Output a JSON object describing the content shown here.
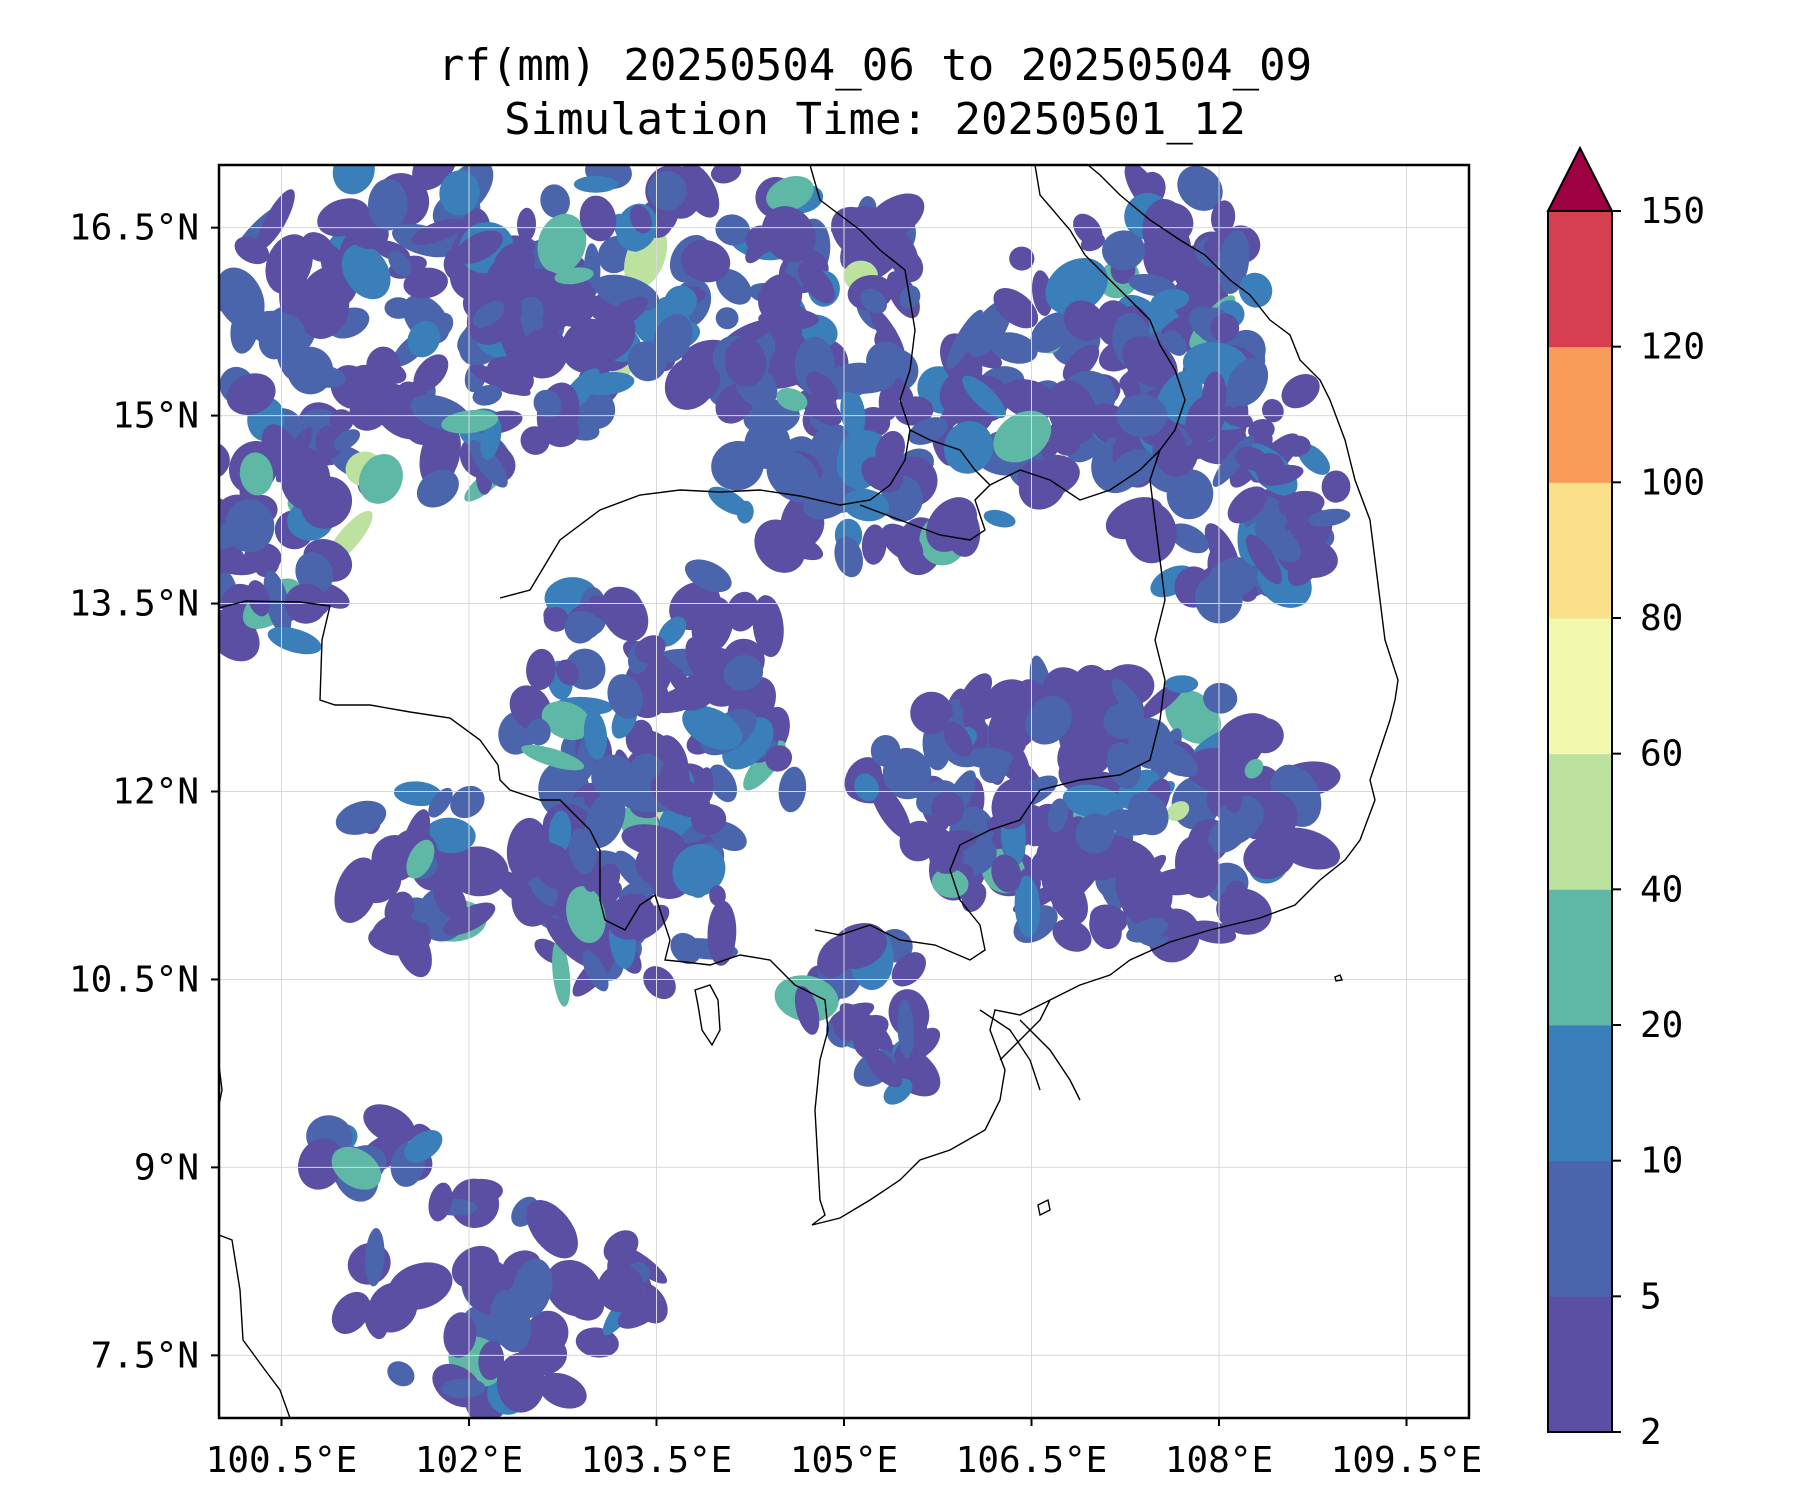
{
  "title": {
    "line1": "rf(mm) 20250504_06 to 20250504_09",
    "line2": "Simulation Time: 20250501_12"
  },
  "map": {
    "lon_range": [
      100.0,
      110.0
    ],
    "lat_range": [
      7.0,
      17.0
    ],
    "lon_ticks": [
      {
        "value": 100.5,
        "label": "100.5°E"
      },
      {
        "value": 102.0,
        "label": "102°E"
      },
      {
        "value": 103.5,
        "label": "103.5°E"
      },
      {
        "value": 105.0,
        "label": "105°E"
      },
      {
        "value": 106.5,
        "label": "106.5°E"
      },
      {
        "value": 108.0,
        "label": "108°E"
      },
      {
        "value": 109.5,
        "label": "109.5°E"
      }
    ],
    "lat_ticks": [
      {
        "value": 16.5,
        "label": "16.5°N"
      },
      {
        "value": 15.0,
        "label": "15°N"
      },
      {
        "value": 13.5,
        "label": "13.5°N"
      },
      {
        "value": 12.0,
        "label": "12°N"
      },
      {
        "value": 10.5,
        "label": "10.5°N"
      },
      {
        "value": 9.0,
        "label": "9°N"
      },
      {
        "value": 7.5,
        "label": "7.5°N"
      }
    ],
    "grid": true,
    "field": "rainfall"
  },
  "colorbar": {
    "levels": [
      "2",
      "5",
      "10",
      "20",
      "40",
      "60",
      "80",
      "100",
      "120",
      "150"
    ],
    "colors": [
      "#5a4fa2",
      "#4b65ad",
      "#3a7fb9",
      "#5fb7a6",
      "#bde2a0",
      "#f2f8ad",
      "#fcdf8a",
      "#f89b59",
      "#d63f4f",
      "#9e0142"
    ],
    "extend": "max"
  }
}
